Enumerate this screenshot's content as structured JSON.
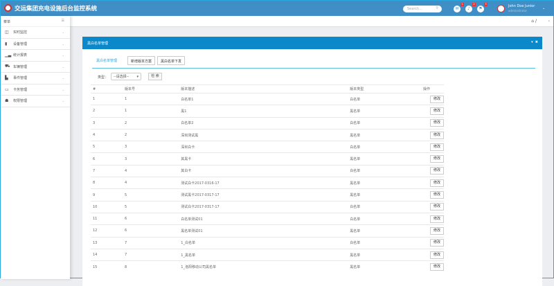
{
  "header": {
    "title": "交运集团充电设施后台监控系统",
    "search_placeholder": "Search...",
    "notifications": [
      {
        "icon": "envelope-icon",
        "count": "1"
      },
      {
        "icon": "bell-icon",
        "count": "2"
      },
      {
        "icon": "flag-icon",
        "count": "3"
      }
    ],
    "user_name": "John Doe Junior",
    "user_role": "administrator"
  },
  "sidebar": {
    "title": "菜单",
    "items": [
      {
        "label": "实时监控",
        "icon": "monitor-icon"
      },
      {
        "label": "设备管理",
        "icon": "device-icon"
      },
      {
        "label": "统计报表",
        "icon": "chart-icon"
      },
      {
        "label": "车辆管理",
        "icon": "car-icon"
      },
      {
        "label": "事件管理",
        "icon": "file-icon"
      },
      {
        "label": "卡务管理",
        "icon": "card-icon"
      },
      {
        "label": "权限管理",
        "icon": "users-icon"
      }
    ]
  },
  "breadcrumb": {
    "separator": "/"
  },
  "panel": {
    "title": "黑白名单管理",
    "tabs": [
      "黑白名单管理",
      "新增版本方案",
      "黑白名单下发"
    ],
    "filter": {
      "label": "类型：",
      "select_value": "--请选择--",
      "search_label": "检 索"
    },
    "table": {
      "columns": [
        "#",
        "版本号",
        "版本描述",
        "版本类型",
        "操作"
      ],
      "action_label": "修改",
      "rows": [
        [
          "1",
          "1",
          "白名单1",
          "白名单"
        ],
        [
          "2",
          "1",
          "黑1",
          "黑名单"
        ],
        [
          "3",
          "2",
          "白名单2",
          "白名单"
        ],
        [
          "4",
          "2",
          "深圳测试黑",
          "黑名单"
        ],
        [
          "5",
          "3",
          "深圳白卡",
          "白名单"
        ],
        [
          "6",
          "3",
          "其黑卡",
          "黑名单"
        ],
        [
          "7",
          "4",
          "其白卡",
          "白名单"
        ],
        [
          "8",
          "4",
          "测试白卡2017-0316-17",
          "黑名单"
        ],
        [
          "9",
          "5",
          "测试黑卡2017-0317-17",
          "黑名单"
        ],
        [
          "10",
          "5",
          "测试白卡2017-0317-17",
          "白名单"
        ],
        [
          "11",
          "6",
          "白名单测试01",
          "白名单"
        ],
        [
          "12",
          "6",
          "黑名单测试01",
          "黑名单"
        ],
        [
          "13",
          "7",
          "1_白名单",
          "白名单"
        ],
        [
          "14",
          "7",
          "1_黑名单",
          "黑名单"
        ],
        [
          "15",
          "8",
          "1_洛阳移动公司黑名单",
          "黑名单"
        ]
      ]
    }
  }
}
